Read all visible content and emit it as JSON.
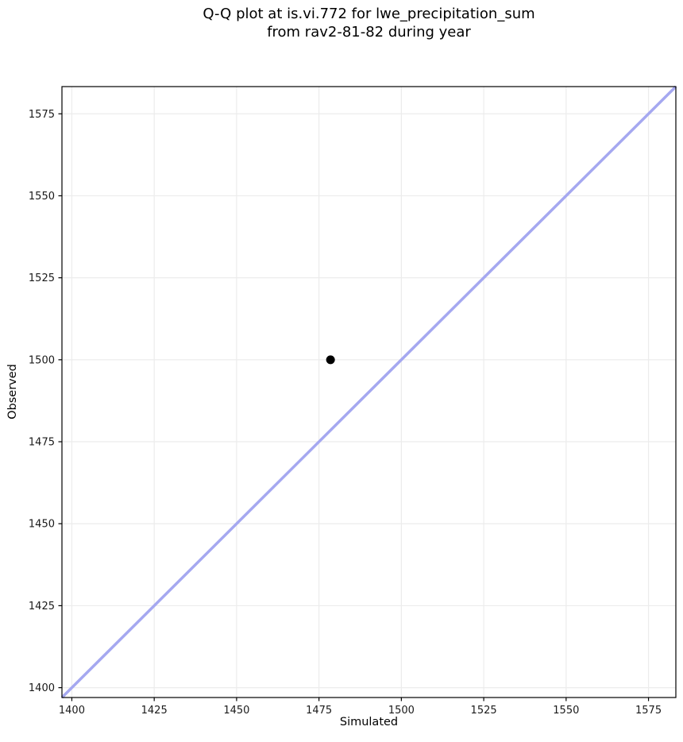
{
  "chart_data": {
    "type": "scatter",
    "title": "Q-Q plot at is.vi.772 for lwe_precipitation_sum\nfrom rav2-81-82 during year",
    "xlabel": "Simulated",
    "ylabel": "Observed",
    "xlim": [
      1397,
      1583.3
    ],
    "ylim": [
      1397,
      1583.3
    ],
    "xticks": [
      1400,
      1425,
      1450,
      1475,
      1500,
      1525,
      1550,
      1575
    ],
    "yticks": [
      1400,
      1425,
      1450,
      1475,
      1500,
      1525,
      1550,
      1575
    ],
    "grid": true,
    "legend_position": "none",
    "points": [
      {
        "x": 1478.5,
        "y": 1500
      }
    ],
    "identity_line": {
      "x1": 1397,
      "y1": 1397,
      "x2": 1583.3,
      "y2": 1583.3
    },
    "colors": {
      "identity_line": "#a5a8f0",
      "marker": "#000000",
      "grid": "#ececec",
      "spine": "#000000",
      "text": "#1a1a1a"
    }
  }
}
